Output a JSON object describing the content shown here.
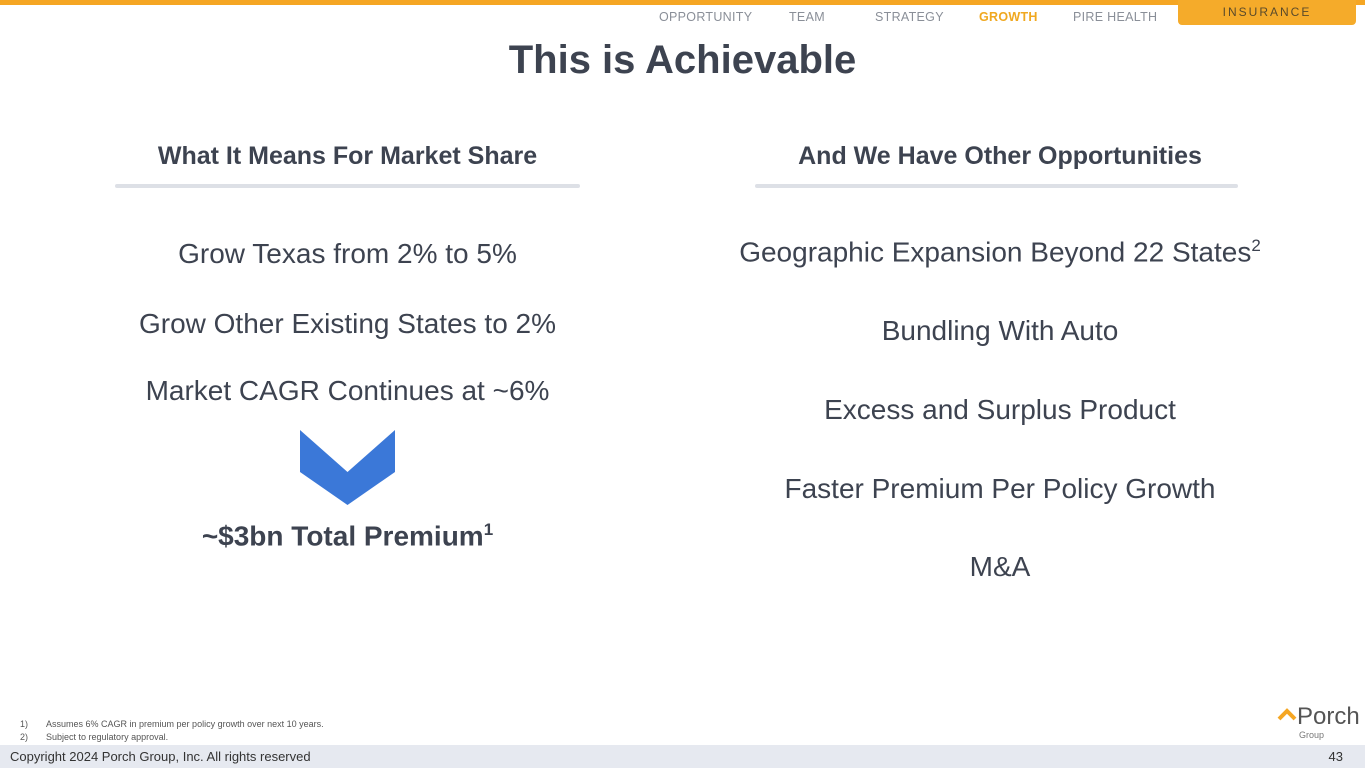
{
  "nav": {
    "items": [
      "OPPORTUNITY",
      "TEAM",
      "STRATEGY",
      "GROWTH",
      "PIRE HEALTH"
    ],
    "active": "GROWTH",
    "tab": "INSURANCE"
  },
  "title": "This is Achievable",
  "left": {
    "heading": "What It Means For Market Share",
    "items": [
      "Grow Texas from 2% to 5%",
      "Grow Other Existing States to 2%",
      "Market CAGR Continues at ~6%"
    ],
    "result": "~$3bn Total Premium",
    "result_sup": "1"
  },
  "right": {
    "heading": "And We Have Other Opportunities",
    "items": [
      "Geographic Expansion Beyond 22 States",
      "Bundling With Auto",
      "Excess and Surplus Product",
      "Faster Premium Per Policy Growth",
      "M&A"
    ],
    "first_sup": "2"
  },
  "footnotes": [
    {
      "n": "1)",
      "t": "Assumes 6% CAGR in premium per policy growth over next 10  years."
    },
    {
      "n": "2)",
      "t": "Subject to regulatory approval."
    }
  ],
  "logo": {
    "name": "Porch",
    "sub": "Group"
  },
  "footer": {
    "copyright": "Copyright 2024 Porch Group, Inc. All rights reserved",
    "page": "43"
  },
  "colors": {
    "accent": "#f5a623",
    "arrow": "#3b78d8",
    "text": "#3d4350"
  }
}
